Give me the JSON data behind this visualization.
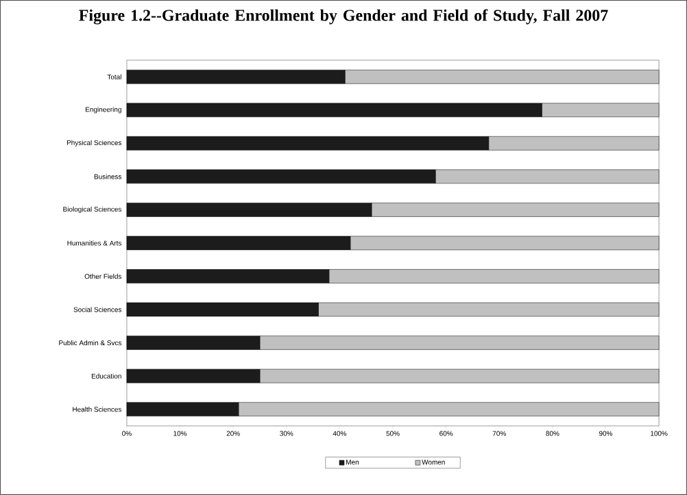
{
  "chart_data": {
    "type": "bar",
    "orientation": "horizontal",
    "stacked": true,
    "title": "Figure 1.2--Graduate Enrollment by Gender and Field of Study, Fall 2007",
    "categories": [
      "Total",
      "Engineering",
      "Physical Sciences",
      "Business",
      "Biological Sciences",
      "Humanities & Arts",
      "Other Fields",
      "Social Sciences",
      "Public Admin & Svcs",
      "Education",
      "Health Sciences"
    ],
    "series": [
      {
        "name": "Men",
        "color": "#1c1c1c",
        "values": [
          41,
          78,
          68,
          58,
          46,
          42,
          38,
          36,
          25,
          25,
          21
        ]
      },
      {
        "name": "Women",
        "color": "#c0c0c0",
        "values": [
          59,
          22,
          32,
          42,
          54,
          58,
          62,
          64,
          75,
          75,
          79
        ]
      }
    ],
    "xlim": [
      0,
      100
    ],
    "xticks": [
      {
        "value": 0,
        "label": "0%"
      },
      {
        "value": 10,
        "label": "10%"
      },
      {
        "value": 20,
        "label": "20%"
      },
      {
        "value": 30,
        "label": "30%"
      },
      {
        "value": 40,
        "label": "40%"
      },
      {
        "value": 50,
        "label": "50%"
      },
      {
        "value": 60,
        "label": "60%"
      },
      {
        "value": 70,
        "label": "70%"
      },
      {
        "value": 80,
        "label": "80%"
      },
      {
        "value": 90,
        "label": "90%"
      },
      {
        "value": 100,
        "label": "100%"
      }
    ],
    "legend": "bottom"
  }
}
